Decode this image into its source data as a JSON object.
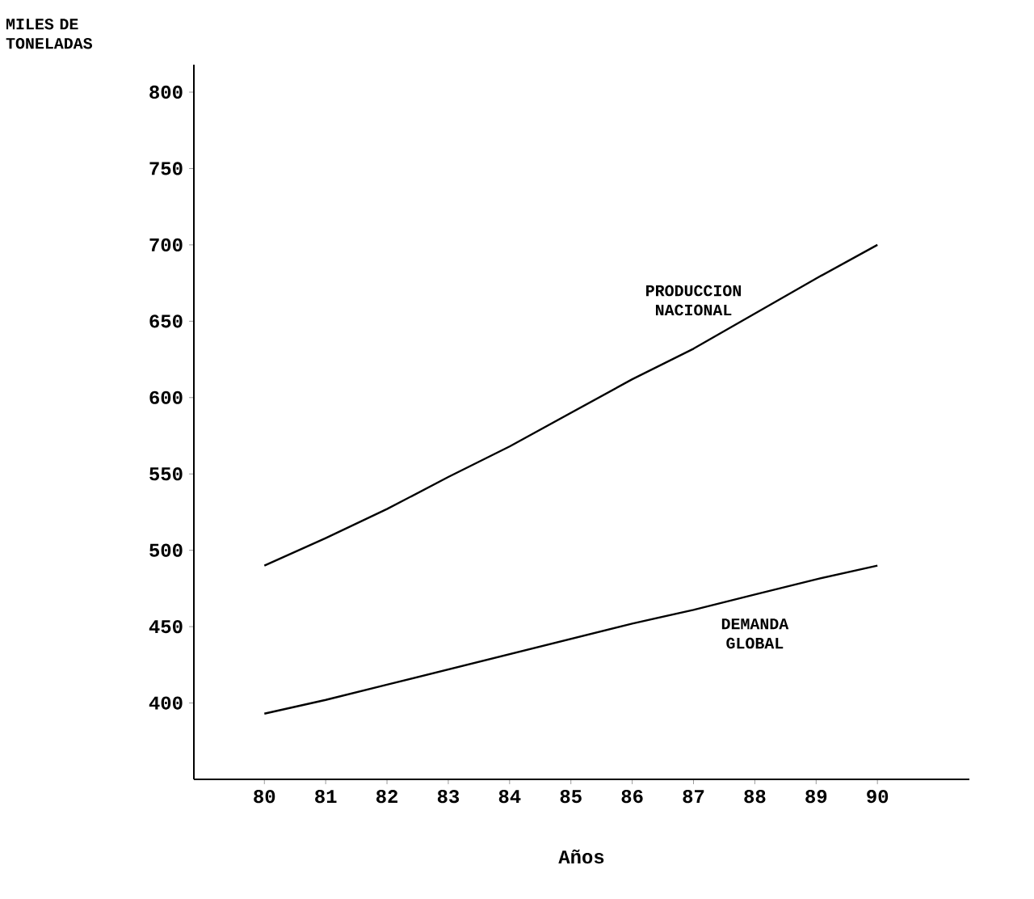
{
  "chart_data": {
    "type": "line",
    "ylabel": "MILES DE TONELADAS",
    "xlabel": "Años",
    "x": [
      80,
      81,
      82,
      83,
      84,
      85,
      86,
      87,
      88,
      89,
      90
    ],
    "series": [
      {
        "name": "PRODUCCION NACIONAL",
        "color": "#000000",
        "values": [
          490,
          508,
          527,
          548,
          568,
          590,
          612,
          632,
          655,
          678,
          700
        ]
      },
      {
        "name": "DEMANDA GLOBAL",
        "color": "#000000",
        "values": [
          393,
          402,
          412,
          422,
          432,
          442,
          452,
          461,
          471,
          481,
          490
        ]
      }
    ],
    "xlim": [
      78.85,
      91.5
    ],
    "ylim": [
      350,
      818
    ],
    "xticks": [
      80,
      81,
      82,
      83,
      84,
      85,
      86,
      87,
      88,
      89,
      90
    ],
    "yticks": [
      400,
      450,
      500,
      550,
      600,
      650,
      700,
      750,
      800
    ],
    "marker": "none",
    "line_style": "solid",
    "grid": false
  }
}
